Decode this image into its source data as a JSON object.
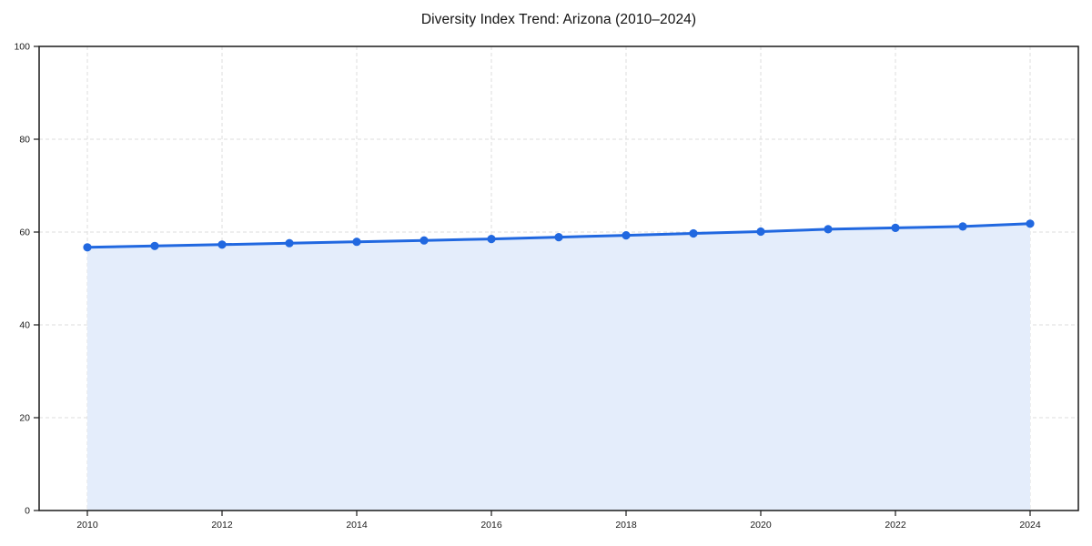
{
  "chart_data": {
    "type": "area",
    "title": "Diversity Index Trend: Arizona (2010–2024)",
    "x": [
      2010,
      2011,
      2012,
      2013,
      2014,
      2015,
      2016,
      2017,
      2018,
      2019,
      2020,
      2021,
      2022,
      2023,
      2024
    ],
    "values": [
      56.7,
      57.0,
      57.3,
      57.6,
      57.9,
      58.2,
      58.5,
      58.9,
      59.3,
      59.7,
      60.1,
      60.6,
      60.9,
      61.2,
      61.8
    ],
    "xlabel": "",
    "ylabel": "",
    "x_ticks": [
      2010,
      2012,
      2014,
      2016,
      2018,
      2020,
      2022,
      2024
    ],
    "y_ticks": [
      0,
      20,
      40,
      60,
      80,
      100
    ],
    "ylim": [
      0,
      100
    ],
    "grid": "dashed-both-axes",
    "legend": "none",
    "colors": {
      "line": "#2168e0",
      "marker": "#2168e0",
      "area_fill": "#e4edfb",
      "grid": "#dcdcdc",
      "axis": "#1a1a1a",
      "tick_label": "#1a1a1a",
      "title": "#111111",
      "background": "#ffffff"
    }
  }
}
